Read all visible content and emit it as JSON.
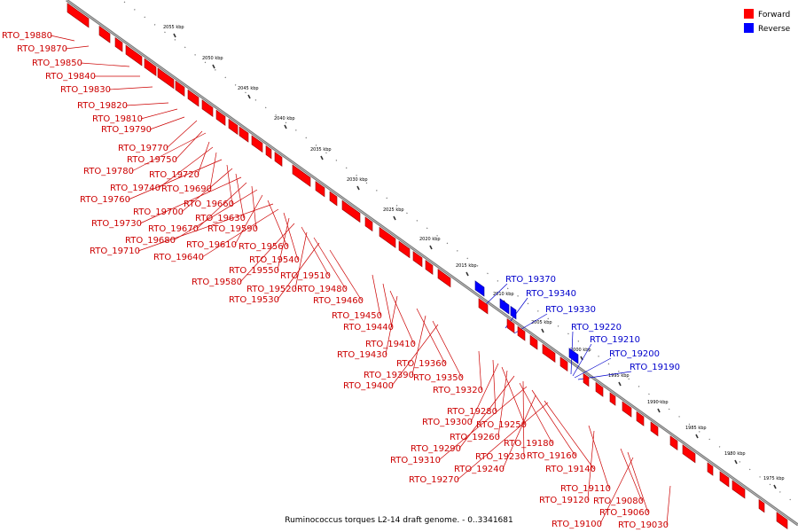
{
  "caption": "Ruminococcus torques L2-14 draft genome. - 0..3341681",
  "legend": [
    {
      "label": "Forward",
      "color": "#ff0000"
    },
    {
      "label": "Reverse",
      "color": "#0000ff"
    }
  ],
  "ticks": [
    "2055 kbp",
    "2050 kbp",
    "2045 kbp",
    "2040 kbp",
    "2035 kbp",
    "2030 kbp",
    "2025 kbp",
    "2020 kbp",
    "2015 kbp",
    "2010 kbp",
    "2005 kbp",
    "2000 kbp",
    "1995 kbp",
    "1990 kbp",
    "1985 kbp",
    "1980 kbp",
    "1975 kbp"
  ],
  "colors": {
    "forward": "#ff0000",
    "forward_shade": "#9a0000",
    "reverse": "#0000ff",
    "reverse_shade": "#000099",
    "forward_text": "#cc0000",
    "reverse_text": "#0000cc"
  },
  "forward_genes": [
    "RTO_19880",
    "RTO_19870",
    "RTO_19850",
    "RTO_19840",
    "RTO_19830",
    "RTO_19820",
    "RTO_19810",
    "RTO_19790",
    "RTO_19770",
    "RTO_19750",
    "RTO_19780",
    "RTO_19720",
    "RTO_19740",
    "RTO_19690",
    "RTO_19760",
    "RTO_19660",
    "RTO_19700",
    "RTO_19630",
    "RTO_19730",
    "RTO_19670",
    "RTO_19590",
    "RTO_19680",
    "RTO_19610",
    "RTO_19560",
    "RTO_19710",
    "RTO_19640",
    "RTO_19540",
    "RTO_19550",
    "RTO_19580",
    "RTO_19510",
    "RTO_19520",
    "RTO_19480",
    "RTO_19530",
    "RTO_19460",
    "RTO_19450",
    "RTO_19440",
    "RTO_19410",
    "RTO_19430",
    "RTO_19360",
    "RTO_19390",
    "RTO_19350",
    "RTO_19400",
    "RTO_19320",
    "RTO_19280",
    "RTO_19300",
    "RTO_19250",
    "RTO_19260",
    "RTO_19180",
    "RTO_19290",
    "RTO_19230",
    "RTO_19160",
    "RTO_19310",
    "RTO_19240",
    "RTO_19140",
    "RTO_19270",
    "RTO_19110",
    "RTO_19120",
    "RTO_19080",
    "RTO_19060",
    "RTO_19100",
    "RTO_19030"
  ],
  "reverse_genes": [
    "RTO_19370",
    "RTO_19340",
    "RTO_19330",
    "RTO_19220",
    "RTO_19210",
    "RTO_19200",
    "RTO_19190"
  ]
}
